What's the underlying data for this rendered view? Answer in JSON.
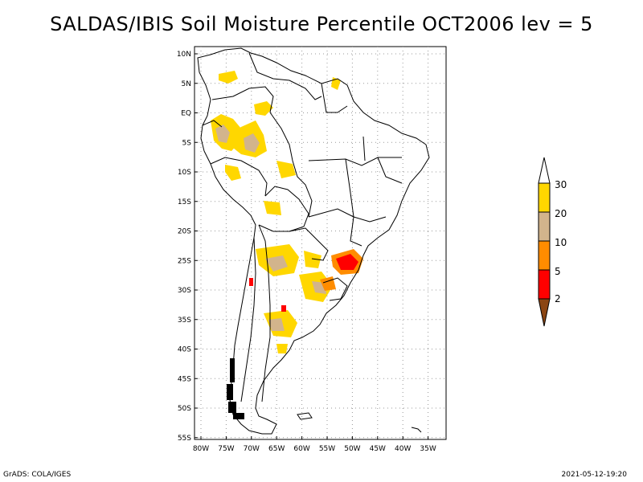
{
  "title": "SALDAS/IBIS Soil Moisture Percentile OCT2006 lev = 5",
  "map": {
    "lat_ticks": [
      "10N",
      "5N",
      "EQ",
      "5S",
      "10S",
      "15S",
      "20S",
      "25S",
      "30S",
      "35S",
      "40S",
      "45S",
      "50S",
      "55S"
    ],
    "lon_ticks": [
      "80W",
      "75W",
      "70W",
      "65W",
      "60W",
      "55W",
      "50W",
      "45W",
      "40W",
      "35W"
    ],
    "lat_range": [
      -56,
      12
    ],
    "lon_range": [
      -81,
      -34
    ],
    "grid": true
  },
  "colorbar": {
    "levels": [
      "2",
      "5",
      "10",
      "20",
      "30"
    ],
    "colors": {
      "lt2": "#8b4513",
      "2_5": "#ff0000",
      "5_10": "#ff8c00",
      "10_20": "#d2b48c",
      "20_30": "#ffd700",
      "gt30": "#ffffff"
    }
  },
  "footer": {
    "left": "GrADS: COLA/IGES",
    "right": "2021-05-12-19:20"
  }
}
